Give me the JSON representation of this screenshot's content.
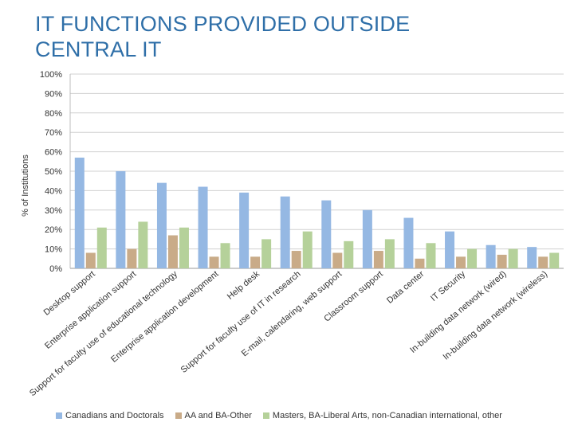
{
  "title_line1": "IT FUNCTIONS PROVIDED OUTSIDE",
  "title_line2": "CENTRAL IT",
  "chart_data": {
    "type": "bar",
    "ylabel": "% of Institutions",
    "ylim": [
      0,
      100
    ],
    "yticks": [
      "0%",
      "10%",
      "20%",
      "30%",
      "40%",
      "50%",
      "60%",
      "70%",
      "80%",
      "90%",
      "100%"
    ],
    "grid": true,
    "legend_position": "bottom",
    "categories": [
      "Desktop support",
      "Enterprise application support",
      "Support for faculty use of educational technology",
      "Enterprise application development",
      "Help desk",
      "Support for faculty use of IT in research",
      "E-mail, calendaring, web support",
      "Classroom support",
      "Data center",
      "IT Security",
      "In-building data network (wired)",
      "In-building data network (wireless)"
    ],
    "series": [
      {
        "name": "Canadians and Doctorals",
        "color": "#95b8e3",
        "values": [
          57,
          50,
          44,
          42,
          39,
          37,
          35,
          30,
          26,
          19,
          12,
          11
        ]
      },
      {
        "name": "AA and BA-Other",
        "color": "#c9ab88",
        "values": [
          8,
          10,
          17,
          6,
          6,
          9,
          8,
          9,
          5,
          6,
          7,
          6
        ]
      },
      {
        "name": "Masters, BA-Liberal Arts, non-Canadian international, other",
        "color": "#b5d19a",
        "values": [
          21,
          24,
          21,
          13,
          15,
          19,
          14,
          15,
          13,
          10,
          10,
          8
        ]
      }
    ]
  }
}
